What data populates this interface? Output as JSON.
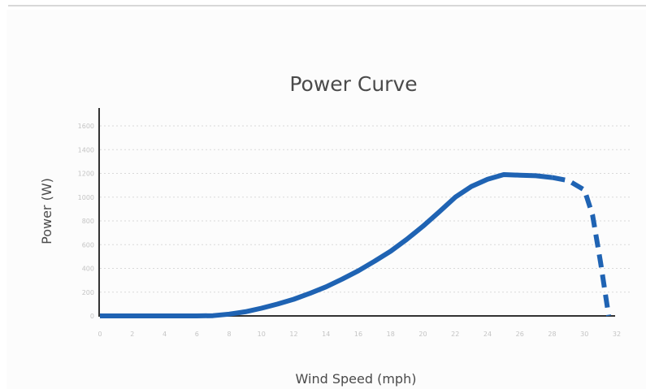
{
  "chart_data": {
    "type": "line",
    "title": "Power Curve",
    "xlabel": "Wind Speed (mph)",
    "ylabel": "Power (W)",
    "xlim": [
      0,
      32
    ],
    "ylim": [
      0,
      1600
    ],
    "x_ticks": [
      0,
      2,
      4,
      6,
      8,
      10,
      12,
      14,
      16,
      18,
      20,
      22,
      24,
      26,
      28,
      30,
      32
    ],
    "y_ticks": [
      0,
      200,
      400,
      600,
      800,
      1000,
      1200,
      1400,
      1600
    ],
    "x_tick_labels": [
      "0",
      "2",
      "4",
      "6",
      "8",
      "10",
      "12",
      "14",
      "16",
      "18",
      "20",
      "22",
      "24",
      "26",
      "28",
      "30",
      "32"
    ],
    "y_tick_labels": [
      "0",
      "200",
      "400",
      "600",
      "800",
      "1000",
      "1200",
      "1400",
      "1600"
    ],
    "grid": "horizontal dotted",
    "colors": {
      "line": "#1f63b3",
      "axis": "#333333",
      "grid": "#d9d9d9"
    },
    "series": [
      {
        "style": "solid",
        "x": [
          0,
          2,
          4,
          6,
          7,
          8,
          9,
          10,
          11,
          12,
          13,
          14,
          15,
          16,
          17,
          18,
          19,
          20,
          21,
          22,
          23,
          24,
          25,
          26,
          27,
          28
        ],
        "y": [
          0,
          0,
          0,
          0,
          2,
          15,
          35,
          65,
          100,
          140,
          190,
          245,
          310,
          380,
          460,
          545,
          645,
          755,
          875,
          1000,
          1090,
          1150,
          1190,
          1185,
          1180,
          1165
        ]
      },
      {
        "style": "dashed",
        "x": [
          28,
          29,
          30,
          30.5,
          31,
          31.5
        ],
        "y": [
          1165,
          1140,
          1060,
          850,
          450,
          0
        ]
      }
    ]
  }
}
